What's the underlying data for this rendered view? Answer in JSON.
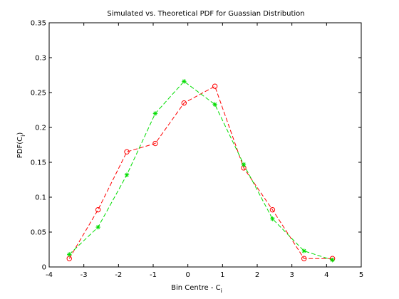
{
  "chart_data": {
    "type": "line",
    "title": "Simulated vs. Theoretical PDF for Guassian Distribution",
    "xlabel": "Bin Centre - C",
    "xlabel_sub": "i",
    "ylabel": "PDF(C",
    "ylabel_sub": "i",
    "ylabel_close": ")",
    "xlim": [
      -4,
      5
    ],
    "ylim": [
      0,
      0.35
    ],
    "xticks": [
      "-4",
      "-3",
      "-2",
      "-1",
      "0",
      "1",
      "2",
      "3",
      "4",
      "5"
    ],
    "yticks": [
      "0",
      "0.05",
      "0.1",
      "0.15",
      "0.2",
      "0.25",
      "0.3",
      "0.35"
    ],
    "grid": false,
    "series": [
      {
        "color": "#ff0000",
        "marker": "circle",
        "line": "dashed",
        "x": [
          -3.42,
          -2.59,
          -1.76,
          -0.94,
          -0.11,
          0.78,
          1.61,
          2.44,
          3.35,
          4.17
        ],
        "y": [
          0.012,
          0.082,
          0.165,
          0.177,
          0.235,
          0.259,
          0.142,
          0.082,
          0.012,
          0.012
        ]
      },
      {
        "color": "#00dd00",
        "marker": "star",
        "line": "dashed",
        "x": [
          -3.42,
          -2.59,
          -1.76,
          -0.94,
          -0.11,
          0.78,
          1.61,
          2.44,
          3.35,
          4.17
        ],
        "y": [
          0.018,
          0.057,
          0.132,
          0.22,
          0.266,
          0.233,
          0.147,
          0.069,
          0.023,
          0.01
        ]
      }
    ]
  }
}
